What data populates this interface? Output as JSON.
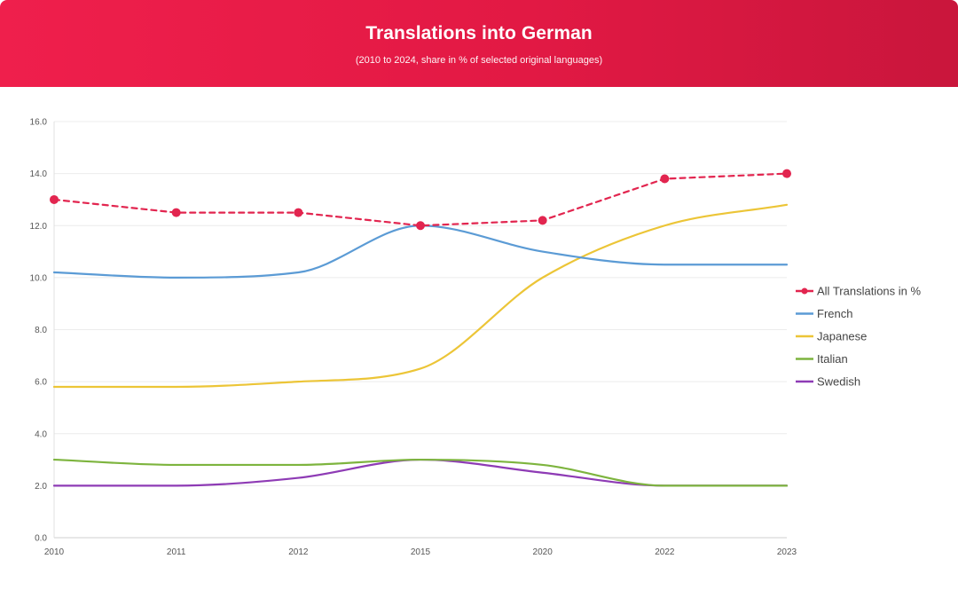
{
  "header": {
    "title": "Translations into German",
    "subtitle": "(2010 to 2024, share in % of selected original languages)"
  },
  "chart_data": {
    "type": "line",
    "title": "Translations into German",
    "subtitle": "(2010 to 2024, share in % of selected original languages)",
    "categories": [
      "2010",
      "2011",
      "2012",
      "2015",
      "2020",
      "2022",
      "2023"
    ],
    "ylim": [
      0,
      16
    ],
    "yticks": [
      "0.0",
      "2.0",
      "4.0",
      "6.0",
      "8.0",
      "10.0",
      "12.0",
      "14.0",
      "16.0"
    ],
    "grid": true,
    "legend_position": "right",
    "series": [
      {
        "name": "All Translations in %",
        "color": "#e2254f",
        "dashed": true,
        "markers": true,
        "values": [
          13.0,
          12.5,
          12.5,
          12.0,
          12.2,
          13.8,
          14.0
        ]
      },
      {
        "name": "French",
        "color": "#5b9bd5",
        "dashed": false,
        "markers": false,
        "values": [
          10.2,
          10.0,
          10.2,
          12.0,
          11.0,
          10.5,
          10.5
        ]
      },
      {
        "name": "Japanese",
        "color": "#ecc537",
        "dashed": false,
        "markers": false,
        "values": [
          5.8,
          5.8,
          6.0,
          6.5,
          10.0,
          12.0,
          12.8
        ]
      },
      {
        "name": "Italian",
        "color": "#7db43e",
        "dashed": false,
        "markers": false,
        "values": [
          3.0,
          2.8,
          2.8,
          3.0,
          2.8,
          2.0,
          2.0
        ]
      },
      {
        "name": "Swedish",
        "color": "#8e3bb5",
        "dashed": false,
        "markers": false,
        "values": [
          2.0,
          2.0,
          2.3,
          3.0,
          2.5,
          2.0,
          2.0
        ]
      }
    ]
  }
}
